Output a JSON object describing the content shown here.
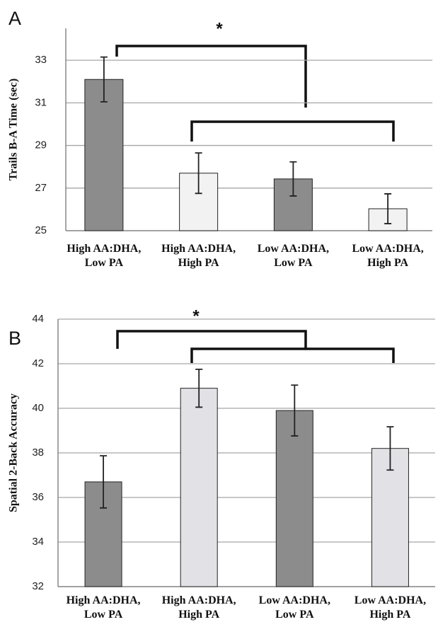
{
  "chart_data": [
    {
      "type": "bar",
      "panel_label": "A",
      "y_label": "Trails B-A Time (sec)",
      "annotation": "*",
      "categories": [
        [
          "High AA:DHA,",
          "Low PA"
        ],
        [
          "High AA:DHA,",
          "High PA"
        ],
        [
          "Low AA:DHA,",
          "Low PA"
        ],
        [
          "Low AA:DHA,",
          "High PA"
        ]
      ],
      "values": [
        32.1,
        27.7,
        27.43,
        26.03
      ],
      "errors": [
        1.05,
        0.95,
        0.8,
        0.7
      ],
      "colors": [
        "#8c8c8c",
        "#f2f2f2",
        "#8c8c8c",
        "#f2f2f2"
      ],
      "ylim": [
        25,
        34.5
      ],
      "yticks": [
        25,
        27,
        29,
        31,
        33
      ],
      "grid": true
    },
    {
      "type": "bar",
      "panel_label": "B",
      "y_label": "Spatial 2-Back Accuracy",
      "annotation": "*",
      "categories": [
        [
          "High AA:DHA,",
          "Low PA"
        ],
        [
          "High AA:DHA,",
          "High PA"
        ],
        [
          "Low AA:DHA,",
          "Low PA"
        ],
        [
          "Low AA:DHA,",
          "High PA"
        ]
      ],
      "values": [
        36.7,
        40.9,
        39.9,
        38.2
      ],
      "errors": [
        1.17,
        0.85,
        1.14,
        0.97
      ],
      "colors": [
        "#8c8c8c",
        "#e1e1e6",
        "#8c8c8c",
        "#e1e1e6"
      ],
      "ylim": [
        32,
        44
      ],
      "yticks": [
        32,
        34,
        36,
        38,
        40,
        42,
        44
      ],
      "grid": true
    }
  ]
}
